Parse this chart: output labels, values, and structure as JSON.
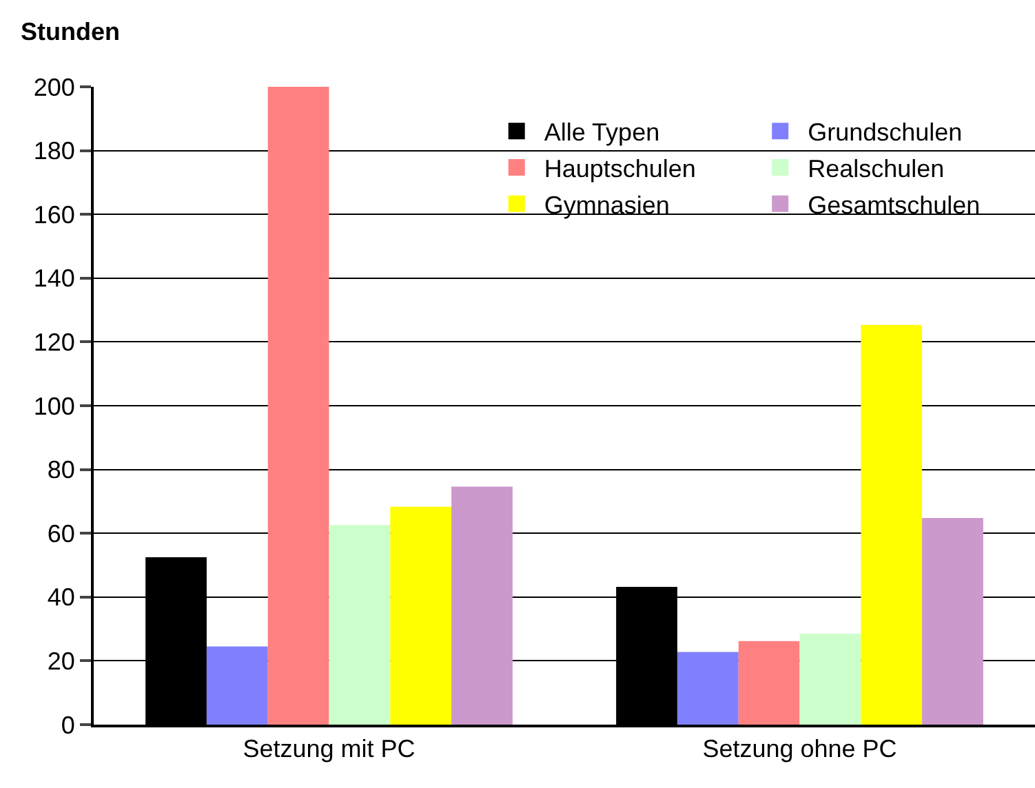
{
  "chart_data": {
    "type": "bar",
    "ylabel": "Stunden",
    "categories": [
      "Setzung mit PC",
      "Setzung ohne PC"
    ],
    "series": [
      {
        "name": "Alle Typen",
        "color": "#000000",
        "values": [
          52.5,
          43.2
        ]
      },
      {
        "name": "Grundschulen",
        "color": "#8080ff",
        "values": [
          24.5,
          22.8
        ]
      },
      {
        "name": "Hauptschulen",
        "color": "#ff8080",
        "values": [
          200,
          26.2
        ]
      },
      {
        "name": "Realschulen",
        "color": "#ccffcc",
        "values": [
          62.6,
          28.5
        ]
      },
      {
        "name": "Gymnasien",
        "color": "#ffff00",
        "values": [
          68.3,
          125.3
        ]
      },
      {
        "name": "Gesamtschulen",
        "color": "#cc99cc",
        "values": [
          74.6,
          64.8
        ]
      }
    ],
    "ylim": [
      0,
      200
    ],
    "yticks": [
      0,
      20,
      40,
      60,
      80,
      100,
      120,
      140,
      160,
      180,
      200
    ],
    "grid": "y",
    "legend": "top right"
  }
}
